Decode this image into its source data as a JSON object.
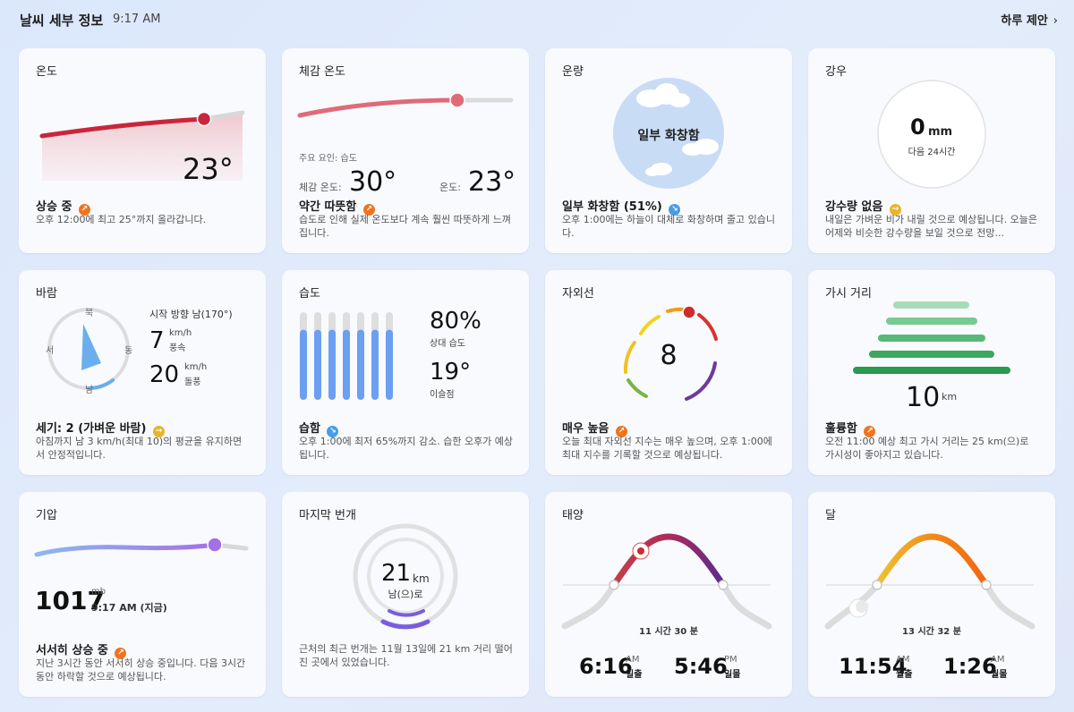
{
  "header": {
    "title": "날씨 세부 정보",
    "time": "9:17 AM",
    "suggest_label": "하루 제안",
    "suggest_icon": "chevron-right-icon"
  },
  "colors": {
    "up": "#f0741e",
    "down": "#4a9be8",
    "neutral": "#e9b52c",
    "temp_line": "#c9263b",
    "accent_blue": "#6c9ff1"
  },
  "temperature": {
    "title": "온도",
    "value": "23°",
    "status": "상승 중",
    "description": "오후 12:00에 최고 25°까지 올라갑니다."
  },
  "feels_like": {
    "title": "체감 온도",
    "factor_label": "주요 요인: 습도",
    "feels_label": "체감 온도:",
    "feels_value": "30°",
    "temp_label": "온도:",
    "temp_value": "23°",
    "status": "약간 따뜻함",
    "description": "습도로 인해 실제 온도보다 계속 훨씬 따뜻하게 느껴집니다."
  },
  "cloud": {
    "title": "운량",
    "center_label": "일부 화창함",
    "status": "일부 화창함 (51%)",
    "description": "오후 1:00에는 하늘이 대체로 화창하며 줄고 있습니다."
  },
  "precip": {
    "title": "강우",
    "value": "0",
    "unit": "mm",
    "sub": "다음 24시간",
    "status": "강수량 없음",
    "description": "내일은 가벼운 비가 내릴 것으로 예상됩니다. 오늘은 어제와 비슷한 강수량을 보일 것으로 전망..."
  },
  "wind": {
    "title": "바람",
    "direction_label": "시작 방향 남(170°)",
    "direction_deg": 170,
    "compass": {
      "n": "북",
      "e": "동",
      "s": "남",
      "w": "서"
    },
    "speed_value": "7",
    "speed_unit": "km/h",
    "speed_label": "풍속",
    "gust_value": "20",
    "gust_unit": "km/h",
    "gust_label": "돌풍",
    "status": "세기: 2 (가벼운 바람)",
    "description": "아침까지 남 3 km/h(최대 10)의 평균을 유지하면서 안정적입니다."
  },
  "humidity": {
    "title": "습도",
    "value": "80%",
    "value_label": "상대 습도",
    "dew_value": "19°",
    "dew_label": "이슬점",
    "bar_levels": [
      0.8,
      0.8,
      0.8,
      0.8,
      0.8,
      0.8,
      0.8
    ],
    "status": "습함",
    "description": "오후 1:00에 최저 65%까지 감소. 습한 오후가 예상됩니다."
  },
  "uv": {
    "title": "자외선",
    "value": "8",
    "status": "매우 높음",
    "description": "오늘 최대 자외선 지수는 매우 높으며, 오후 1:00에 최대 지수를 기록할 것으로 예상됩니다."
  },
  "visibility": {
    "title": "가시 거리",
    "value": "10",
    "unit": "km",
    "status": "훌륭함",
    "description": "오전 11:00 예상 최고 가시 거리는 25 km(으)로 가시성이 좋아지고 있습니다."
  },
  "pressure": {
    "title": "기압",
    "value": "1017",
    "unit": "mb",
    "time_label": "9:17 AM (지금)",
    "status": "서서히 상승 중",
    "description": "지난 3시간 동안 서서히 상승 중입니다. 다음 3시간 동안 하락할 것으로 예상됩니다."
  },
  "lightning": {
    "title": "마지막 번개",
    "value": "21",
    "unit": "km",
    "direction": "남(으)로",
    "description": "근처의 최근 번개는 11월 13일에 21 km 거리 떨어진 곳에서 있었습니다."
  },
  "sun": {
    "title": "태양",
    "duration": "11 시간 30 분",
    "rise_time": "6:16",
    "rise_ampm": "AM",
    "rise_label": "일출",
    "set_time": "5:46",
    "set_ampm": "PM",
    "set_label": "일몰"
  },
  "moon": {
    "title": "달",
    "duration": "13 시간 32 분",
    "rise_time": "11:54",
    "rise_ampm": "AM",
    "rise_label": "월출",
    "set_time": "1:26",
    "set_ampm": "AM",
    "set_label": "월몰"
  }
}
